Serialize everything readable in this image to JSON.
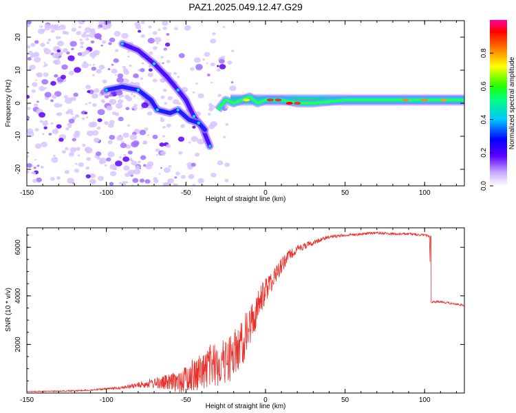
{
  "title": "PAZ1.2025.049.12.47.G29",
  "colors": {
    "snr_line": "#e8312b",
    "axis": "#000000",
    "background": "#ffffff"
  },
  "chart_data": [
    {
      "type": "heatmap",
      "xlabel": "Height of straight line (km)",
      "ylabel": "Frequency (Hz)",
      "xlim": [
        -150,
        125
      ],
      "ylim": [
        -25,
        25
      ],
      "xticks": [
        "-150",
        "-100",
        "-50",
        "0",
        "50",
        "100"
      ],
      "yticks": [
        "20",
        "10",
        "0",
        "-10",
        "-20"
      ],
      "colorbar": {
        "label": "Normalized spectral amplitude",
        "range": [
          0,
          1
        ],
        "ticks": [
          "0.0",
          "0.2",
          "0.4",
          "0.6",
          "0.8"
        ],
        "colormap": "rainbow (white-violet-blue-cyan-green-yellow-red-magenta)"
      },
      "ridges": [
        {
          "points": [
            [
              -90,
              18
            ],
            [
              -80,
              16
            ],
            [
              -70,
              12
            ],
            [
              -62,
              8
            ],
            [
              -55,
              4
            ],
            [
              -50,
              1
            ],
            [
              -45,
              -4
            ],
            [
              -40,
              -7
            ],
            [
              -35,
              -13
            ]
          ]
        },
        {
          "points": [
            [
              -100,
              4
            ],
            [
              -90,
              5
            ],
            [
              -80,
              4
            ],
            [
              -72,
              1
            ],
            [
              -68,
              -2
            ],
            [
              -60,
              -3
            ],
            [
              -55,
              -2
            ],
            [
              -48,
              -5
            ],
            [
              -42,
              -6
            ],
            [
              -38,
              -8
            ]
          ]
        },
        {
          "points": [
            [
              -30,
              -2
            ],
            [
              -25,
              1
            ],
            [
              -20,
              0
            ],
            [
              -15,
              1
            ],
            [
              -10,
              2
            ],
            [
              -5,
              0
            ],
            [
              0,
              1
            ],
            [
              10,
              1
            ],
            [
              20,
              0
            ],
            [
              30,
              0
            ],
            [
              50,
              1
            ],
            [
              75,
              1
            ],
            [
              100,
              1
            ],
            [
              125,
              1
            ]
          ]
        }
      ],
      "grid": false
    },
    {
      "type": "line",
      "xlabel": "Height of straight line (km)",
      "ylabel": "SNR (10 * v/v)",
      "xlim": [
        -150,
        125
      ],
      "ylim": [
        0,
        6800
      ],
      "xticks": [
        "-150",
        "-100",
        "-50",
        "0",
        "50",
        "100"
      ],
      "yticks": [
        "2000",
        "4000",
        "6000"
      ],
      "series": [
        {
          "x": [
            -150,
            -130,
            -110,
            -95,
            -85,
            -75,
            -65,
            -55,
            -50,
            -45,
            -40,
            -35,
            -30,
            -25,
            -20,
            -15,
            -10,
            -5,
            0,
            5,
            10,
            15,
            20,
            25,
            30,
            35,
            40,
            50,
            60,
            70,
            80,
            90,
            100,
            103,
            104,
            110,
            120,
            125
          ],
          "y": [
            80,
            100,
            150,
            250,
            350,
            550,
            700,
            900,
            1200,
            1500,
            1700,
            2000,
            2100,
            2300,
            2600,
            3000,
            3600,
            4200,
            4800,
            5200,
            5600,
            5900,
            6100,
            6200,
            6300,
            6400,
            6500,
            6550,
            6600,
            6650,
            6600,
            6600,
            6550,
            6500,
            3800,
            3800,
            3700,
            3650
          ],
          "noise": [
            30,
            40,
            60,
            100,
            150,
            300,
            500,
            800,
            1100,
            1300,
            1500,
            1600,
            1700,
            1800,
            1800,
            1800,
            1600,
            1300,
            1000,
            800,
            600,
            400,
            300,
            250,
            200,
            150,
            120,
            100,
            100,
            100,
            100,
            100,
            100,
            100,
            80,
            80,
            80,
            80
          ]
        }
      ],
      "grid": false
    }
  ]
}
